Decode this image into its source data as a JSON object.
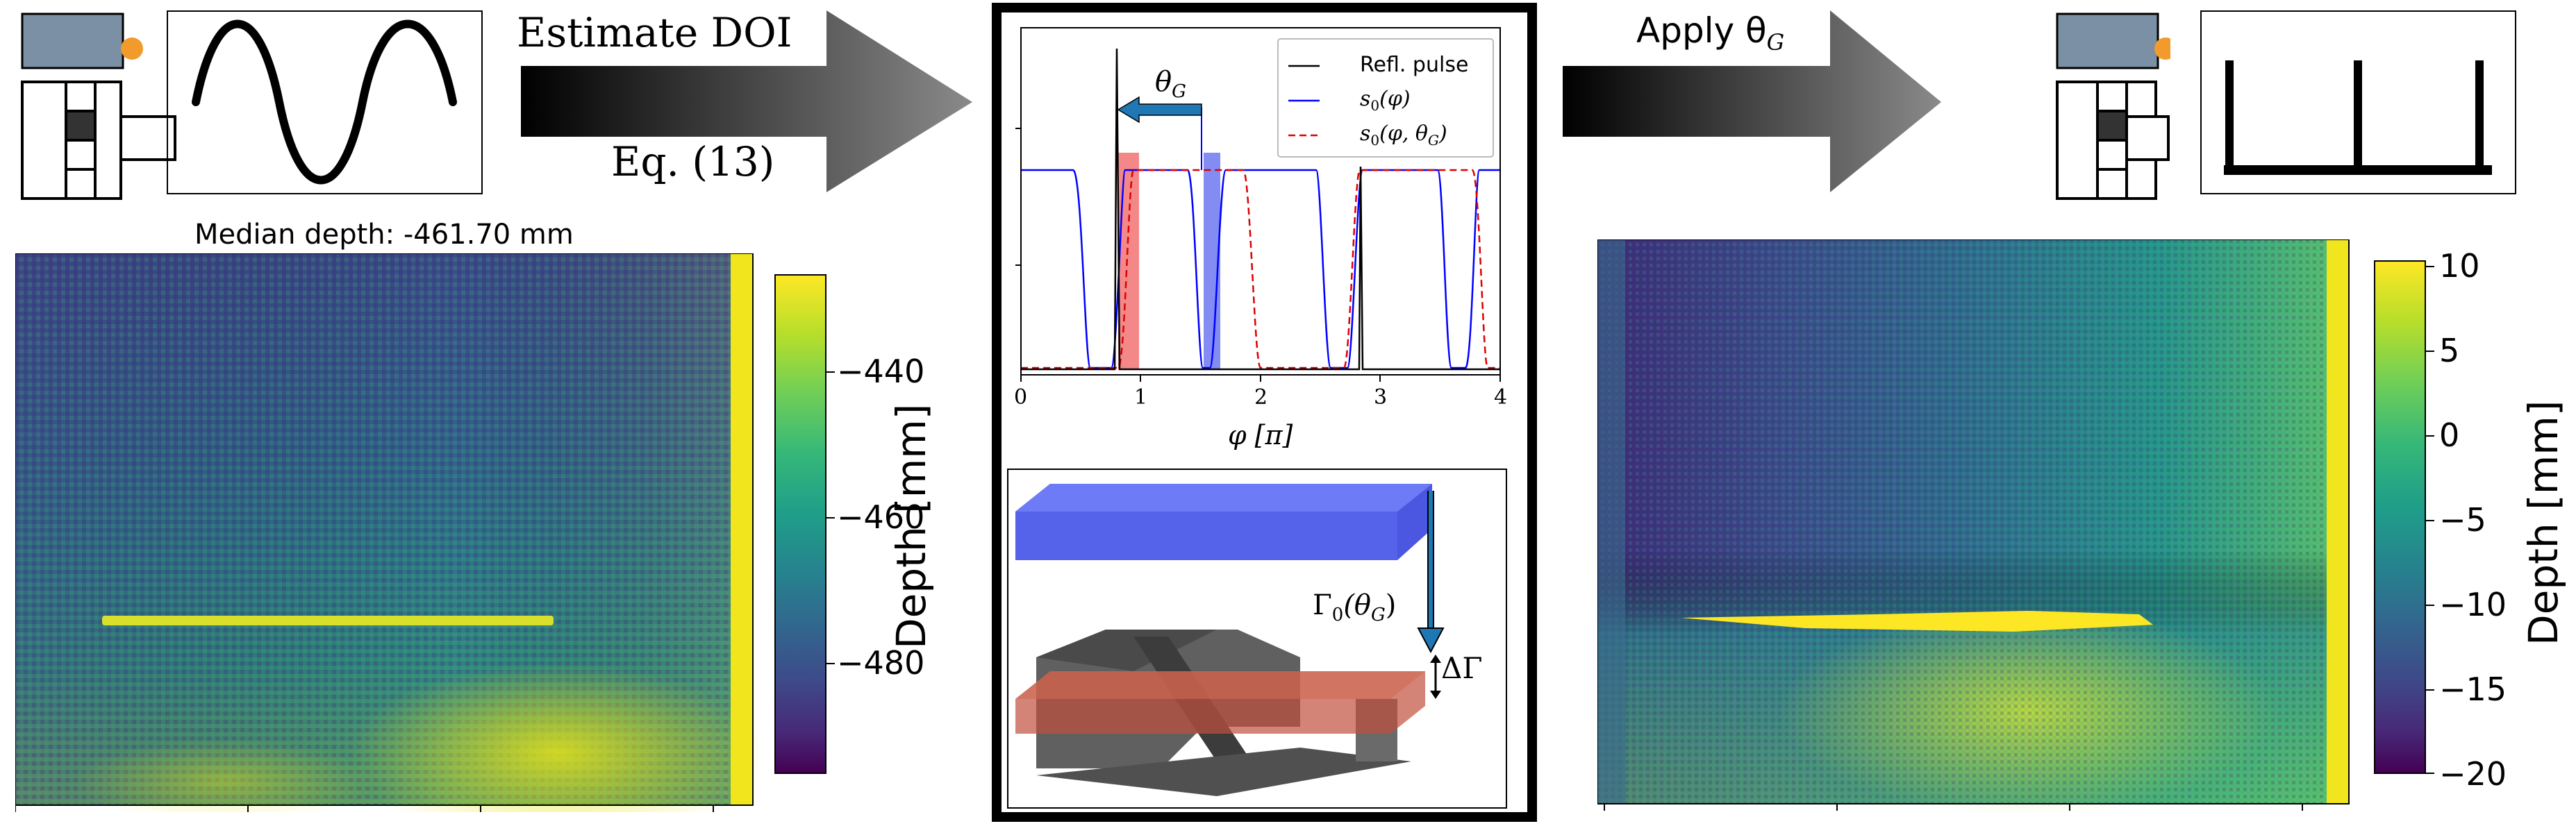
{
  "top_left": {
    "arrow_top_label": "Estimate DOI",
    "arrow_bottom_label": "Eq. (13)"
  },
  "top_right": {
    "arrow_label": "Apply θG",
    "arrow_label_main": "Apply θ",
    "arrow_label_sub": "G"
  },
  "left_map": {
    "title": "Median depth: -461.70 mm",
    "colorbar_label": "Depth [mm]",
    "colorbar_ticks": [
      "−440",
      "−460",
      "−480"
    ]
  },
  "right_map": {
    "colorbar_label": "Depth [mm]",
    "colorbar_ticks": [
      "10",
      "5",
      "0",
      "−5",
      "−10",
      "−15",
      "−20"
    ]
  },
  "center_plot": {
    "legend": [
      "Refl. pulse",
      "s0(φ)",
      "s0(φ,θG)"
    ],
    "legend_s0_main": "s",
    "legend_s0_sub": "0",
    "legend_s0_arg": "(φ)",
    "legend_s0g_arg": "(φ, θ",
    "legend_s0g_sub": "G",
    "legend_s0g_close": ")",
    "theta_label": "θG",
    "theta_main": "θ",
    "theta_sub": "G",
    "x_ticks": [
      "0",
      "1",
      "2",
      "3",
      "4"
    ],
    "x_label": "φ [π]"
  },
  "center_3d": {
    "gamma_label": "Γ0(θG)",
    "gamma_main": "Γ",
    "gamma_sub0": "0",
    "gamma_arg": "(θ",
    "gamma_subG": "G",
    "gamma_close": ")",
    "delta_label": "ΔΓ"
  },
  "colors": {
    "refl_pulse": "#000000",
    "s0": "#0000ff",
    "s0_theta": "#dd0000",
    "blue_band": "#5a66ee",
    "red_band": "#f06060",
    "slab_blue": "#5b6ef0",
    "slab_red": "#c0503c",
    "object_gray": "#5c5c5c",
    "sensor_gray": "#7b8fa5",
    "sensor_led": "#f39a2c"
  }
}
